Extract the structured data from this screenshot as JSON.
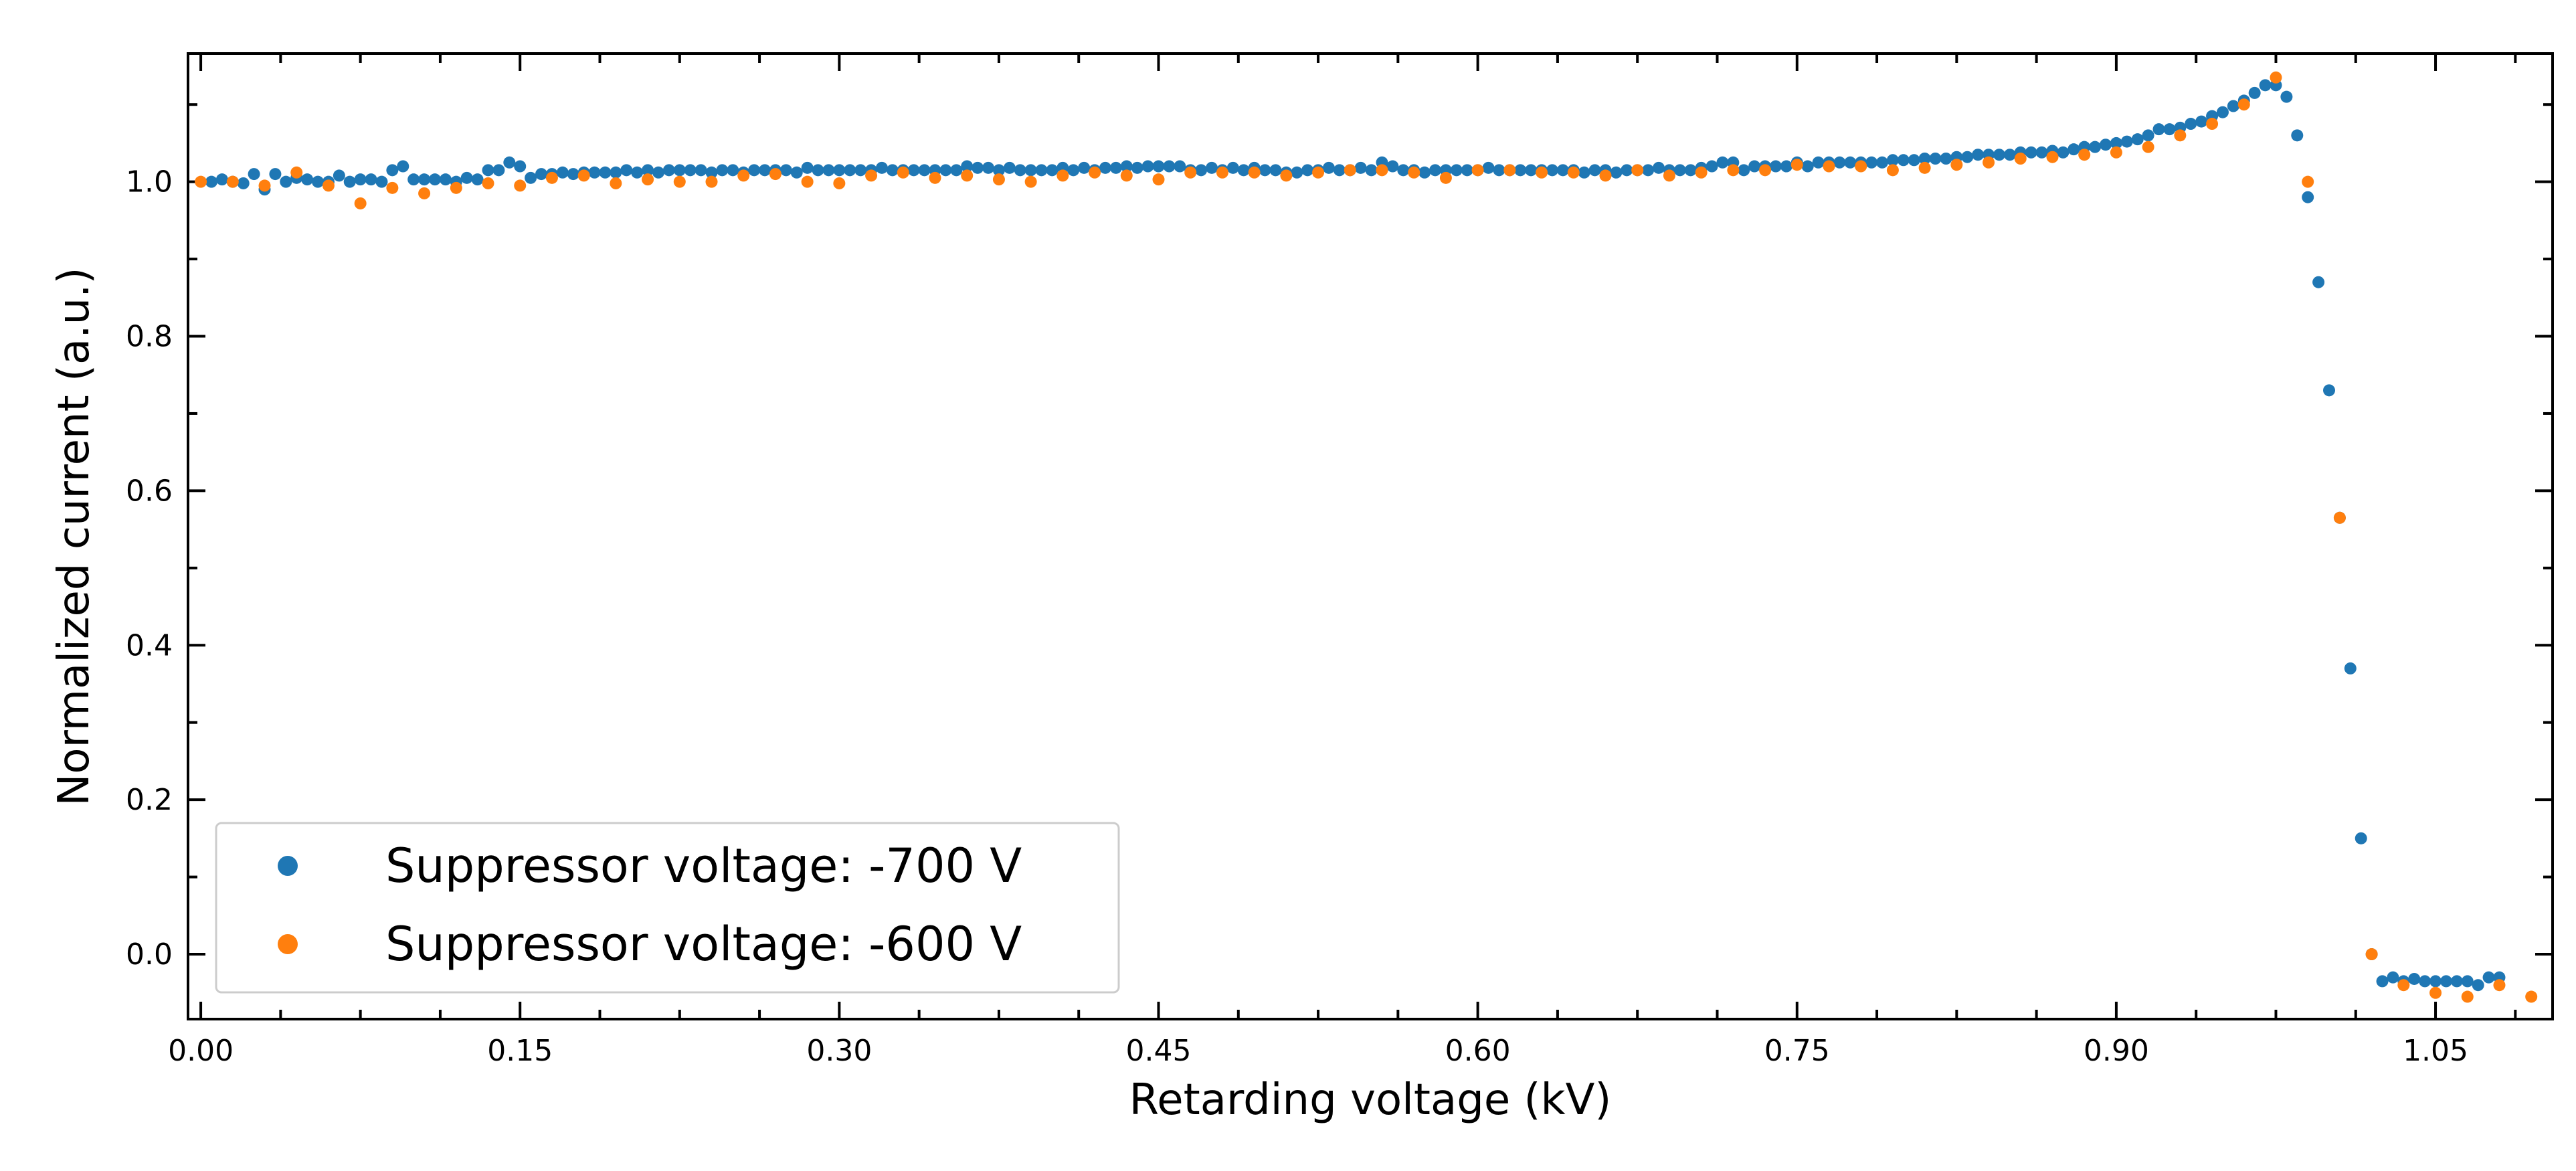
{
  "chart_data": {
    "type": "scatter",
    "xlabel": "Retarding voltage (kV)",
    "ylabel": "Normalized current (a.u.)",
    "xlim": [
      -0.006,
      1.105
    ],
    "ylim": [
      -0.084,
      1.166
    ],
    "xticks": [
      {
        "value": 0,
        "label": "0.00"
      },
      0.15,
      {
        "value": 0.3,
        "label": "0.30"
      },
      0.45,
      {
        "value": 0.6,
        "label": "0.60"
      },
      0.75,
      {
        "value": 0.9,
        "label": "0.90"
      },
      1.05
    ],
    "yticks": [
      {
        "value": 0,
        "label": "0.0"
      },
      0.2,
      0.4,
      0.6,
      0.8,
      {
        "value": 1,
        "label": "1.0"
      }
    ],
    "xminorticks": [
      0.0375,
      0.075,
      0.1125,
      0.1875,
      0.225,
      0.2625,
      0.3375,
      0.375,
      0.4125,
      0.4875,
      0.525,
      0.5625,
      0.6375,
      0.675,
      0.7125,
      0.7875,
      0.825,
      0.8625,
      0.9375,
      0.975,
      1.0125,
      1.0875
    ],
    "yminorticks": [
      0.1,
      0.3,
      0.5,
      0.7,
      0.9,
      1.1
    ],
    "legend": "lower left",
    "series": [
      {
        "name": "Suppressor voltage: -700 V",
        "color": "#1f77b4",
        "x": [
          0.005,
          0.01,
          0.015,
          0.02,
          0.025,
          0.03,
          0.035,
          0.04,
          0.045,
          0.05,
          0.055,
          0.06,
          0.065,
          0.07,
          0.075,
          0.08,
          0.085,
          0.09,
          0.095,
          0.1,
          0.105,
          0.11,
          0.115,
          0.12,
          0.125,
          0.13,
          0.135,
          0.14,
          0.145,
          0.15,
          0.155,
          0.16,
          0.165,
          0.17,
          0.175,
          0.18,
          0.185,
          0.19,
          0.195,
          0.2,
          0.205,
          0.21,
          0.215,
          0.22,
          0.225,
          0.23,
          0.235,
          0.24,
          0.245,
          0.25,
          0.255,
          0.26,
          0.265,
          0.27,
          0.275,
          0.28,
          0.285,
          0.29,
          0.295,
          0.3,
          0.305,
          0.31,
          0.315,
          0.32,
          0.325,
          0.33,
          0.335,
          0.34,
          0.345,
          0.35,
          0.355,
          0.36,
          0.365,
          0.37,
          0.375,
          0.38,
          0.385,
          0.39,
          0.395,
          0.4,
          0.405,
          0.41,
          0.415,
          0.42,
          0.425,
          0.43,
          0.435,
          0.44,
          0.445,
          0.45,
          0.455,
          0.46,
          0.465,
          0.47,
          0.475,
          0.48,
          0.485,
          0.49,
          0.495,
          0.5,
          0.505,
          0.51,
          0.515,
          0.52,
          0.525,
          0.53,
          0.535,
          0.54,
          0.545,
          0.55,
          0.555,
          0.56,
          0.565,
          0.57,
          0.575,
          0.58,
          0.585,
          0.59,
          0.595,
          0.6,
          0.605,
          0.61,
          0.615,
          0.62,
          0.625,
          0.63,
          0.635,
          0.64,
          0.645,
          0.65,
          0.655,
          0.66,
          0.665,
          0.67,
          0.675,
          0.68,
          0.685,
          0.69,
          0.695,
          0.7,
          0.705,
          0.71,
          0.715,
          0.72,
          0.725,
          0.73,
          0.735,
          0.74,
          0.745,
          0.75,
          0.755,
          0.76,
          0.765,
          0.77,
          0.775,
          0.78,
          0.785,
          0.79,
          0.795,
          0.8,
          0.805,
          0.81,
          0.815,
          0.82,
          0.825,
          0.83,
          0.835,
          0.84,
          0.845,
          0.85,
          0.855,
          0.86,
          0.865,
          0.87,
          0.875,
          0.88,
          0.885,
          0.89,
          0.895,
          0.9,
          0.905,
          0.91,
          0.915,
          0.92,
          0.925,
          0.93,
          0.935,
          0.94,
          0.945,
          0.95,
          0.955,
          0.96,
          0.965,
          0.97,
          0.975,
          0.98,
          0.985,
          0.99,
          0.995,
          1.0,
          1.005,
          1.01,
          1.015,
          1.02,
          1.025,
          1.03,
          1.035,
          1.04,
          1.045,
          1.05,
          1.055,
          1.06,
          1.065,
          1.07,
          1.075,
          1.08
        ],
        "values": [
          1.0,
          1.003,
          1.0,
          0.998,
          1.01,
          0.99,
          1.01,
          1.0,
          1.005,
          1.003,
          1.0,
          1.0,
          1.008,
          1.0,
          1.003,
          1.003,
          1.0,
          1.015,
          1.02,
          1.003,
          1.003,
          1.003,
          1.003,
          1.0,
          1.005,
          1.003,
          1.015,
          1.015,
          1.025,
          1.02,
          1.005,
          1.01,
          1.01,
          1.012,
          1.01,
          1.012,
          1.012,
          1.012,
          1.012,
          1.015,
          1.012,
          1.015,
          1.012,
          1.015,
          1.015,
          1.015,
          1.015,
          1.012,
          1.015,
          1.015,
          1.012,
          1.015,
          1.015,
          1.015,
          1.015,
          1.012,
          1.018,
          1.015,
          1.015,
          1.015,
          1.015,
          1.015,
          1.015,
          1.018,
          1.015,
          1.015,
          1.015,
          1.015,
          1.015,
          1.015,
          1.015,
          1.02,
          1.018,
          1.018,
          1.015,
          1.018,
          1.015,
          1.015,
          1.015,
          1.015,
          1.018,
          1.015,
          1.018,
          1.015,
          1.018,
          1.018,
          1.02,
          1.018,
          1.02,
          1.02,
          1.02,
          1.02,
          1.015,
          1.015,
          1.018,
          1.015,
          1.018,
          1.015,
          1.018,
          1.015,
          1.015,
          1.012,
          1.012,
          1.015,
          1.015,
          1.018,
          1.015,
          1.015,
          1.018,
          1.015,
          1.025,
          1.02,
          1.015,
          1.015,
          1.012,
          1.015,
          1.015,
          1.015,
          1.015,
          1.015,
          1.018,
          1.015,
          1.015,
          1.015,
          1.015,
          1.015,
          1.015,
          1.015,
          1.015,
          1.012,
          1.015,
          1.015,
          1.012,
          1.015,
          1.015,
          1.015,
          1.018,
          1.015,
          1.015,
          1.015,
          1.018,
          1.02,
          1.025,
          1.025,
          1.015,
          1.02,
          1.02,
          1.02,
          1.02,
          1.025,
          1.02,
          1.025,
          1.025,
          1.025,
          1.025,
          1.025,
          1.025,
          1.025,
          1.028,
          1.028,
          1.028,
          1.03,
          1.03,
          1.03,
          1.032,
          1.032,
          1.035,
          1.035,
          1.035,
          1.035,
          1.038,
          1.038,
          1.038,
          1.04,
          1.038,
          1.042,
          1.045,
          1.045,
          1.048,
          1.05,
          1.052,
          1.055,
          1.06,
          1.068,
          1.068,
          1.07,
          1.075,
          1.078,
          1.085,
          1.09,
          1.098,
          1.105,
          1.115,
          1.125,
          1.125,
          1.11,
          1.06,
          0.98,
          0.87,
          0.73,
          0.565,
          0.37,
          0.15,
          0.0,
          -0.035,
          -0.03,
          -0.035,
          -0.032,
          -0.035,
          -0.035,
          -0.035,
          -0.035,
          -0.035,
          -0.04,
          -0.03,
          -0.03
        ]
      },
      {
        "name": "Suppressor voltage: -600 V",
        "color": "#ff7f0e",
        "x": [
          0,
          0.015,
          0.03,
          0.045,
          0.06,
          0.075,
          0.09,
          0.105,
          0.12,
          0.135,
          0.15,
          0.165,
          0.18,
          0.195,
          0.21,
          0.225,
          0.24,
          0.255,
          0.27,
          0.285,
          0.3,
          0.315,
          0.33,
          0.345,
          0.36,
          0.375,
          0.39,
          0.405,
          0.42,
          0.435,
          0.45,
          0.465,
          0.48,
          0.495,
          0.51,
          0.525,
          0.54,
          0.555,
          0.57,
          0.585,
          0.6,
          0.615,
          0.63,
          0.645,
          0.66,
          0.675,
          0.69,
          0.705,
          0.72,
          0.735,
          0.75,
          0.765,
          0.78,
          0.795,
          0.81,
          0.825,
          0.84,
          0.855,
          0.87,
          0.885,
          0.9,
          0.915,
          0.93,
          0.945,
          0.96,
          0.975,
          0.99,
          1.005,
          1.02,
          1.035,
          1.05,
          1.065,
          1.08,
          1.095
        ],
        "values": [
          1.0,
          1.0,
          0.995,
          1.012,
          0.995,
          0.972,
          0.992,
          0.985,
          0.992,
          0.998,
          0.995,
          1.005,
          1.008,
          0.998,
          1.003,
          1.0,
          1.0,
          1.008,
          1.01,
          1.0,
          0.998,
          1.008,
          1.012,
          1.005,
          1.008,
          1.003,
          1.0,
          1.008,
          1.012,
          1.008,
          1.003,
          1.012,
          1.012,
          1.012,
          1.008,
          1.012,
          1.015,
          1.015,
          1.012,
          1.005,
          1.015,
          1.015,
          1.012,
          1.012,
          1.008,
          1.015,
          1.008,
          1.012,
          1.015,
          1.015,
          1.022,
          1.02,
          1.02,
          1.015,
          1.018,
          1.022,
          1.025,
          1.03,
          1.032,
          1.035,
          1.038,
          1.045,
          1.06,
          1.075,
          1.1,
          1.135,
          1.0,
          0.565,
          0.0,
          -0.04,
          -0.05,
          -0.055,
          -0.04,
          -0.055
        ]
      }
    ]
  }
}
